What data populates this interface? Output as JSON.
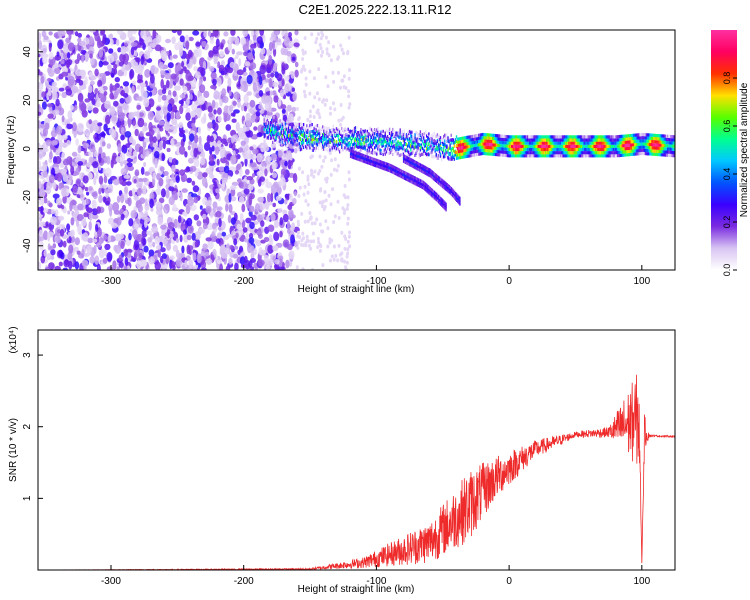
{
  "title": "C2E1.2025.222.13.11.R12",
  "chart_data": [
    {
      "type": "heatmap",
      "xlabel": "Height of straight line (km)",
      "ylabel": "Frequency (Hz)",
      "xlim": [
        -355,
        125
      ],
      "ylim": [
        -50,
        49
      ],
      "xticks": [
        -300,
        -200,
        -100,
        0,
        100
      ],
      "yticks": [
        -40,
        -20,
        0,
        20,
        40
      ],
      "colorbar": {
        "label": "Normalized spectral amplitude",
        "range": [
          0.0,
          1.0
        ],
        "ticks": [
          "0.0",
          "0.2",
          "0.4",
          "0.6",
          "0.8"
        ],
        "colormap": [
          "#ffffff",
          "#d8c4f2",
          "#7a2be0",
          "#3a00ff",
          "#0055ff",
          "#00c8ff",
          "#00ff90",
          "#58ff00",
          "#ffe000",
          "#ff3000",
          "#ff0060",
          "#ff30a0"
        ]
      },
      "features": {
        "noise_region_x": [
          -355,
          -160
        ],
        "main_line": [
          {
            "x": -180,
            "y": 8
          },
          {
            "x": -160,
            "y": 5
          },
          {
            "x": -130,
            "y": 4
          },
          {
            "x": -100,
            "y": 3
          },
          {
            "x": -70,
            "y": 2
          },
          {
            "x": -40,
            "y": 0
          },
          {
            "x": -20,
            "y": 2
          },
          {
            "x": 0,
            "y": 1
          },
          {
            "x": 40,
            "y": 1
          },
          {
            "x": 80,
            "y": 1
          },
          {
            "x": 100,
            "y": 2
          },
          {
            "x": 125,
            "y": 1
          }
        ],
        "lower_branch": [
          {
            "x": -120,
            "y": -2
          },
          {
            "x": -90,
            "y": -8
          },
          {
            "x": -65,
            "y": -15
          },
          {
            "x": -55,
            "y": -20
          },
          {
            "x": -48,
            "y": -24
          }
        ],
        "second_branch": [
          {
            "x": -80,
            "y": -4
          },
          {
            "x": -60,
            "y": -10
          },
          {
            "x": -45,
            "y": -17
          },
          {
            "x": -37,
            "y": -22
          }
        ]
      }
    },
    {
      "type": "line",
      "xlabel": "Height of straight line (km)",
      "ylabel": "SNR (10 * v/v)",
      "multiplier": "(x10⁴)",
      "xlim": [
        -355,
        125
      ],
      "ylim": [
        0,
        3.35
      ],
      "xticks": [
        -300,
        -200,
        -100,
        0,
        100
      ],
      "yticks": [
        1,
        2,
        3
      ],
      "series": [
        {
          "color": "#ee2a2a",
          "envelope": [
            {
              "x": -355,
              "base": 0.0,
              "amp": 0.0
            },
            {
              "x": -150,
              "base": 0.01,
              "amp": 0.02
            },
            {
              "x": -110,
              "base": 0.08,
              "amp": 0.15
            },
            {
              "x": -60,
              "base": 0.3,
              "amp": 0.6
            },
            {
              "x": -30,
              "base": 0.75,
              "amp": 1.0
            },
            {
              "x": -10,
              "base": 1.2,
              "amp": 0.6
            },
            {
              "x": 20,
              "base": 1.65,
              "amp": 0.25
            },
            {
              "x": 50,
              "base": 1.88,
              "amp": 0.08
            },
            {
              "x": 75,
              "base": 1.9,
              "amp": 0.15
            },
            {
              "x": 98,
              "base": 1.9,
              "amp": 1.4
            },
            {
              "x": 100,
              "base": 0.05,
              "amp": 0.0
            },
            {
              "x": 102,
              "base": 1.85,
              "amp": 0.5
            },
            {
              "x": 106,
              "base": 1.87,
              "amp": 0.03
            },
            {
              "x": 125,
              "base": 1.86,
              "amp": 0.02
            }
          ]
        }
      ]
    }
  ]
}
